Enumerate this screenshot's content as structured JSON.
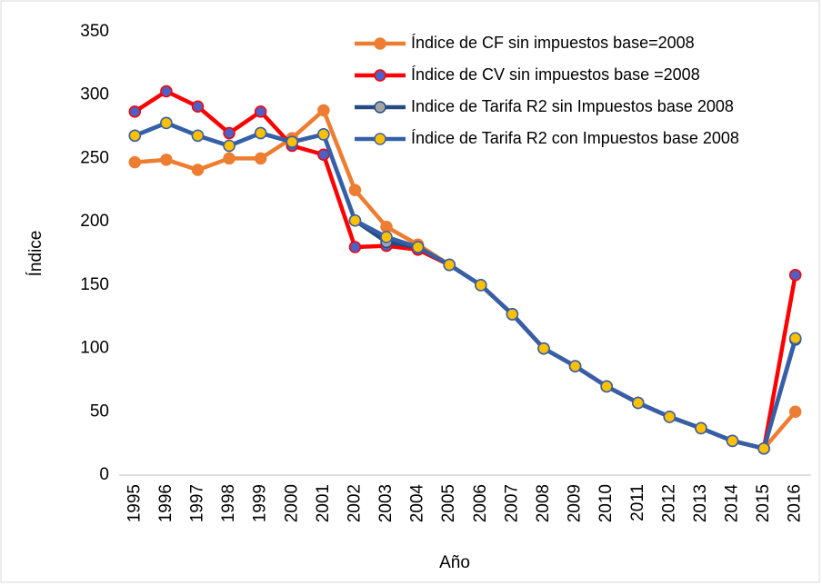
{
  "chart_data": {
    "type": "line",
    "x_label": "Año",
    "y_label": "Índice",
    "categories": [
      "1995",
      "1996",
      "1997",
      "1998",
      "1999",
      "2000",
      "2001",
      "2002",
      "2003",
      "2004",
      "2005",
      "2006",
      "2007",
      "2008",
      "2009",
      "2010",
      "2011",
      "2012",
      "2013",
      "2014",
      "2015",
      "2016"
    ],
    "series": [
      {
        "name": "Índice de CF sin impuestos base=2008",
        "color": "#ED7D31",
        "marker_color": "#ED7D31",
        "values": [
          247,
          249,
          241,
          250,
          250,
          266,
          288,
          225,
          196,
          182,
          166,
          150,
          127,
          100,
          86,
          70,
          57,
          46,
          37,
          27,
          21,
          50
        ]
      },
      {
        "name": "Índice de CV sin impuestos base =2008",
        "color": "#FF0000",
        "marker_color": "#4F5FC4",
        "values": [
          287,
          303,
          291,
          270,
          287,
          260,
          253,
          180,
          181,
          178,
          166,
          150,
          127,
          100,
          86,
          70,
          57,
          46,
          37,
          27,
          21,
          158
        ]
      },
      {
        "name": "Indice de Tarifa R2 sin Impuestos base 2008",
        "color": "#254A84",
        "marker_color": "#A5A5A5",
        "values": [
          268,
          278,
          268,
          260,
          270,
          263,
          269,
          201,
          184,
          180,
          166,
          150,
          127,
          100,
          86,
          70,
          57,
          46,
          37,
          27,
          21,
          107
        ]
      },
      {
        "name": "Índice de Tarifa R2 con Impuestos base 2008",
        "color": "#3560A8",
        "marker_color": "#FFC000",
        "values": [
          268,
          278,
          268,
          260,
          270,
          263,
          269,
          201,
          188,
          180,
          166,
          150,
          127,
          100,
          86,
          70,
          57,
          46,
          37,
          27,
          21,
          108
        ]
      }
    ],
    "ylim": [
      0,
      350
    ],
    "yticks": [
      0,
      50,
      100,
      150,
      200,
      250,
      300,
      350
    ],
    "grid": false,
    "legend": "upper right"
  }
}
